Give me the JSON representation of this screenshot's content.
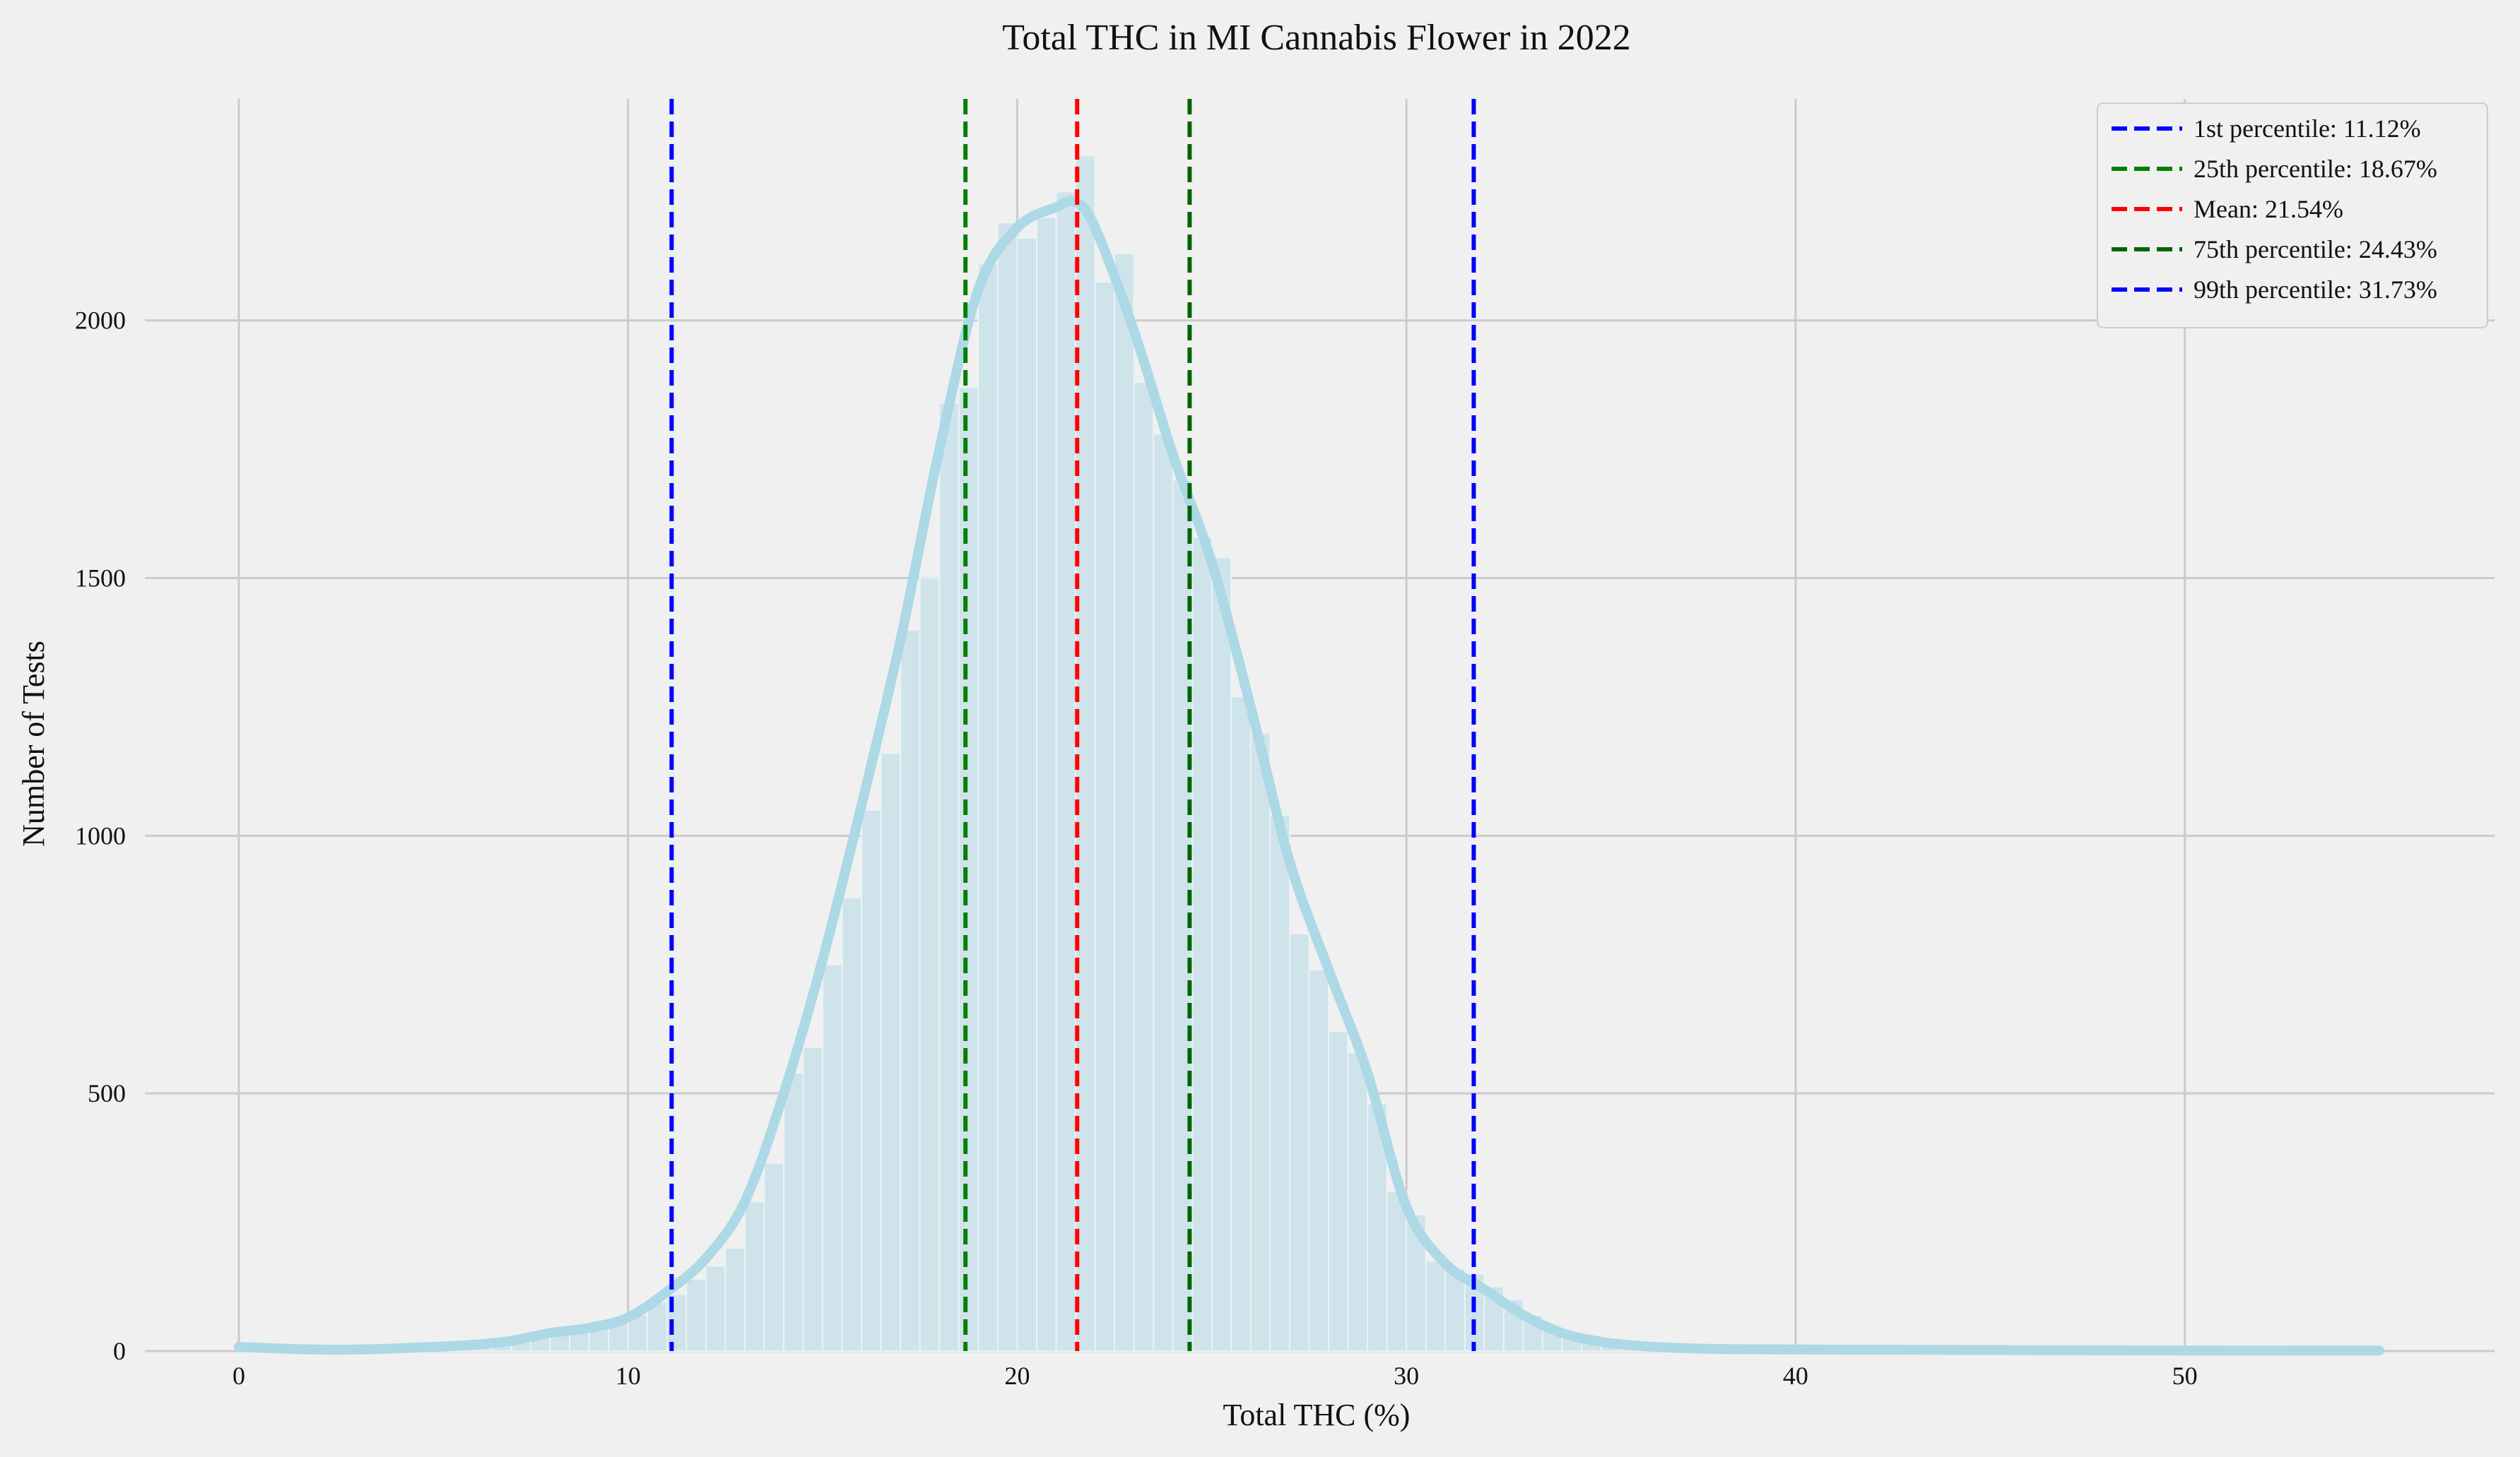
{
  "chart_data": {
    "type": "histogram",
    "title": "Total THC in MI Cannabis Flower in 2022",
    "xlabel": "Total THC (%)",
    "ylabel": "Number of Tests",
    "xlim": [
      0,
      55.2
    ],
    "ylim": [
      0,
      2430
    ],
    "xticks": [
      0,
      10,
      20,
      30,
      40,
      50
    ],
    "yticks": [
      0,
      500,
      1000,
      1500,
      2000
    ],
    "grid": true,
    "legend_position": "top-right",
    "bin_width": 0.5,
    "bins": [
      {
        "x0": 5.0,
        "count": 5
      },
      {
        "x0": 5.5,
        "count": 8
      },
      {
        "x0": 6.0,
        "count": 10
      },
      {
        "x0": 6.5,
        "count": 12
      },
      {
        "x0": 7.0,
        "count": 18
      },
      {
        "x0": 7.5,
        "count": 25
      },
      {
        "x0": 8.0,
        "count": 35
      },
      {
        "x0": 8.5,
        "count": 40
      },
      {
        "x0": 9.0,
        "count": 45
      },
      {
        "x0": 9.5,
        "count": 55
      },
      {
        "x0": 10.0,
        "count": 70
      },
      {
        "x0": 10.5,
        "count": 95
      },
      {
        "x0": 11.0,
        "count": 110
      },
      {
        "x0": 11.5,
        "count": 140
      },
      {
        "x0": 12.0,
        "count": 165
      },
      {
        "x0": 12.5,
        "count": 200
      },
      {
        "x0": 13.0,
        "count": 290
      },
      {
        "x0": 13.5,
        "count": 365
      },
      {
        "x0": 14.0,
        "count": 540
      },
      {
        "x0": 14.5,
        "count": 590
      },
      {
        "x0": 15.0,
        "count": 750
      },
      {
        "x0": 15.5,
        "count": 880
      },
      {
        "x0": 16.0,
        "count": 1050
      },
      {
        "x0": 16.5,
        "count": 1160
      },
      {
        "x0": 17.0,
        "count": 1400
      },
      {
        "x0": 17.5,
        "count": 1500
      },
      {
        "x0": 18.0,
        "count": 1840
      },
      {
        "x0": 18.5,
        "count": 1870
      },
      {
        "x0": 19.0,
        "count": 2110
      },
      {
        "x0": 19.5,
        "count": 2190
      },
      {
        "x0": 20.0,
        "count": 2160
      },
      {
        "x0": 20.5,
        "count": 2200
      },
      {
        "x0": 21.0,
        "count": 2250
      },
      {
        "x0": 21.5,
        "count": 2320
      },
      {
        "x0": 22.0,
        "count": 2075
      },
      {
        "x0": 22.5,
        "count": 2130
      },
      {
        "x0": 23.0,
        "count": 1880
      },
      {
        "x0": 23.5,
        "count": 1780
      },
      {
        "x0": 24.0,
        "count": 1690
      },
      {
        "x0": 24.5,
        "count": 1580
      },
      {
        "x0": 25.0,
        "count": 1540
      },
      {
        "x0": 25.5,
        "count": 1270
      },
      {
        "x0": 26.0,
        "count": 1200
      },
      {
        "x0": 26.5,
        "count": 1040
      },
      {
        "x0": 27.0,
        "count": 810
      },
      {
        "x0": 27.5,
        "count": 740
      },
      {
        "x0": 28.0,
        "count": 620
      },
      {
        "x0": 28.5,
        "count": 580
      },
      {
        "x0": 29.0,
        "count": 480
      },
      {
        "x0": 29.5,
        "count": 310
      },
      {
        "x0": 30.0,
        "count": 265
      },
      {
        "x0": 30.5,
        "count": 175
      },
      {
        "x0": 31.0,
        "count": 160
      },
      {
        "x0": 31.5,
        "count": 150
      },
      {
        "x0": 32.0,
        "count": 125
      },
      {
        "x0": 32.5,
        "count": 100
      },
      {
        "x0": 33.0,
        "count": 70
      },
      {
        "x0": 33.5,
        "count": 45
      },
      {
        "x0": 34.0,
        "count": 30
      },
      {
        "x0": 34.5,
        "count": 20
      },
      {
        "x0": 35.0,
        "count": 12
      },
      {
        "x0": 35.5,
        "count": 8
      },
      {
        "x0": 36.0,
        "count": 5
      }
    ],
    "kde": {
      "x": [
        0,
        1,
        2,
        3,
        4,
        5,
        6,
        7,
        8,
        9,
        10,
        11,
        12,
        13,
        14,
        15,
        16,
        17,
        18,
        19,
        20,
        21,
        21.5,
        22,
        23,
        24,
        25,
        26,
        27,
        28,
        29,
        30,
        31,
        32,
        33,
        34,
        35,
        36,
        37,
        38,
        40,
        45,
        50,
        55
      ],
      "y": [
        8,
        5,
        3,
        3,
        5,
        8,
        12,
        20,
        35,
        45,
        65,
        115,
        180,
        290,
        500,
        760,
        1060,
        1380,
        1750,
        2060,
        2180,
        2220,
        2230,
        2180,
        1980,
        1740,
        1530,
        1250,
        950,
        740,
        540,
        280,
        170,
        120,
        70,
        35,
        18,
        10,
        6,
        4,
        3,
        2,
        1,
        1
      ]
    },
    "reference_lines": [
      {
        "label": "1st percentile: 11.12%",
        "x": 11.12,
        "color": "#0000ff"
      },
      {
        "label": "25th percentile: 18.67%",
        "x": 18.67,
        "color": "#008000"
      },
      {
        "label": "Mean: 21.54%",
        "x": 21.54,
        "color": "#ff0000"
      },
      {
        "label": "75th percentile: 24.43%",
        "x": 24.43,
        "color": "#006400"
      },
      {
        "label": "99th percentile: 31.73%",
        "x": 31.73,
        "color": "#0000ff"
      }
    ],
    "colors": {
      "background": "#f0f0f0",
      "grid": "#cbcbcb",
      "bar_fill": "#cfe3ea",
      "bar_edge": "#eaf3f6",
      "kde": "#add8e6"
    }
  }
}
